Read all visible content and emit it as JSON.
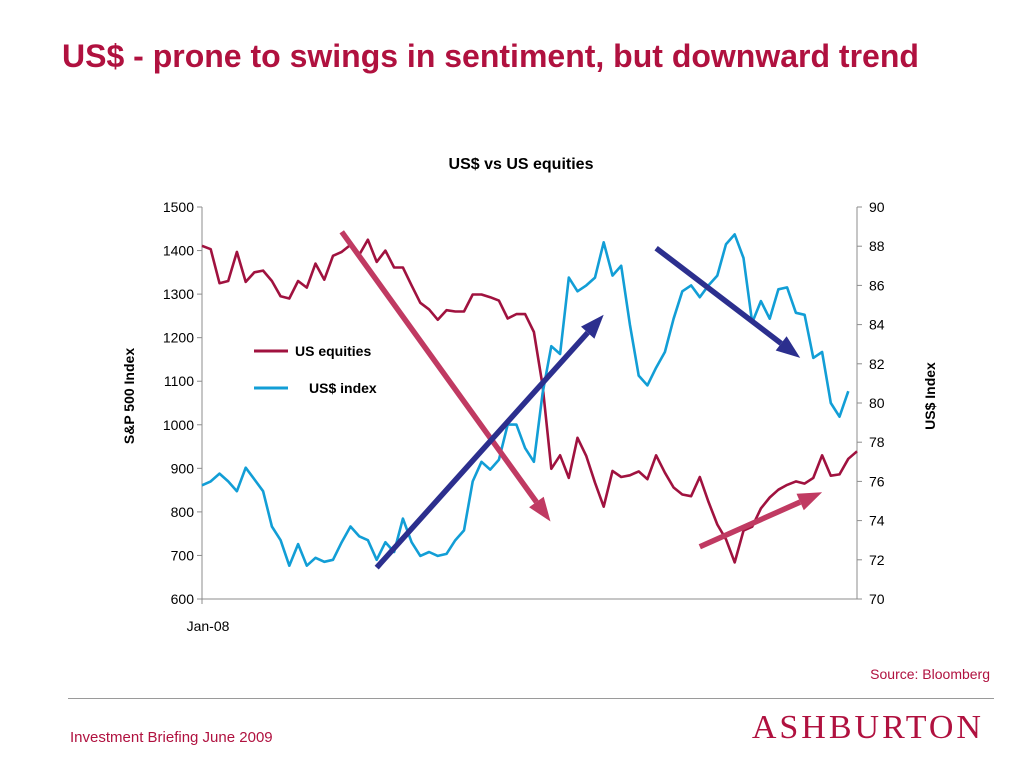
{
  "slide": {
    "title": "US$ - prone to swings in sentiment, but downward trend",
    "source": "Source: Bloomberg",
    "footer": "Investment Briefing June 2009",
    "logo": "ASHBURTON"
  },
  "colors": {
    "title": "#b0113f",
    "equities": "#a0123f",
    "usd_index": "#129ed6",
    "trend_down": "#c03a62",
    "trend_up": "#2c2f8e"
  },
  "chart_data": {
    "type": "line",
    "title": "US$ vs US equities",
    "x_tick_label": "Jan-08",
    "y_left": {
      "label": "S&P 500 Index",
      "range": [
        600,
        1500
      ],
      "ticks": [
        "600",
        "700",
        "800",
        "900",
        "1000",
        "1100",
        "1200",
        "1300",
        "1400",
        "1500"
      ]
    },
    "y_right": {
      "label": "US$ Index",
      "range": [
        70,
        90
      ],
      "ticks": [
        "70",
        "72",
        "74",
        "76",
        "78",
        "80",
        "82",
        "84",
        "86",
        "88",
        "90"
      ]
    },
    "legend": {
      "position": "upper-left-inside",
      "entries": [
        "US equities",
        "US$ index"
      ]
    },
    "grid": false,
    "series": [
      {
        "name": "US equities",
        "axis": "left",
        "values": [
          1411,
          1403,
          1325,
          1330,
          1397,
          1328,
          1350,
          1354,
          1330,
          1295,
          1290,
          1330,
          1315,
          1370,
          1333,
          1388,
          1397,
          1413,
          1390,
          1425,
          1374,
          1400,
          1361,
          1361,
          1320,
          1280,
          1265,
          1241,
          1263,
          1260,
          1260,
          1299,
          1299,
          1293,
          1285,
          1244,
          1254,
          1254,
          1213,
          1090,
          899,
          930,
          878,
          970,
          928,
          867,
          812,
          894,
          880,
          884,
          893,
          875,
          930,
          890,
          856,
          840,
          836,
          880,
          823,
          771,
          737,
          684,
          757,
          766,
          808,
          833,
          851,
          862,
          870,
          865,
          878,
          930,
          883,
          886,
          922,
          939
        ]
      },
      {
        "name": "US$ index",
        "axis": "right",
        "values": [
          75.8,
          76.0,
          76.4,
          76.0,
          75.5,
          76.7,
          76.1,
          75.5,
          73.7,
          73.0,
          71.7,
          72.8,
          71.7,
          72.1,
          71.9,
          72.0,
          72.9,
          73.7,
          73.2,
          73.0,
          72.0,
          72.9,
          72.4,
          74.1,
          72.9,
          72.2,
          72.4,
          72.2,
          72.3,
          73.0,
          73.5,
          76.0,
          77.0,
          76.6,
          77.1,
          78.9,
          78.9,
          77.7,
          77.0,
          80.5,
          82.9,
          82.5,
          86.4,
          85.7,
          86.0,
          86.4,
          88.2,
          86.5,
          87.0,
          84.0,
          81.4,
          80.9,
          81.8,
          82.6,
          84.3,
          85.7,
          86.0,
          85.4,
          86.0,
          86.5,
          88.1,
          88.6,
          87.4,
          84.1,
          85.2,
          84.3,
          85.8,
          85.9,
          84.6,
          84.5,
          82.3,
          82.6,
          80.0,
          79.3,
          80.6
        ]
      }
    ],
    "trend_arrows": [
      {
        "name": "equities-downtrend",
        "color": "trend_down",
        "from": {
          "i": 16.0,
          "axis": "left",
          "v": 1443
        },
        "to": {
          "i": 39.9,
          "axis": "left",
          "v": 778
        }
      },
      {
        "name": "equities-uptrend",
        "color": "trend_down",
        "from": {
          "i": 57.0,
          "axis": "left",
          "v": 720
        },
        "to": {
          "i": 71.0,
          "axis": "left",
          "v": 845
        }
      },
      {
        "name": "usd-uptrend",
        "color": "trend_up",
        "from": {
          "i": 20.0,
          "axis": "right",
          "v": 71.6
        },
        "to": {
          "i": 46.0,
          "axis": "right",
          "v": 84.5
        }
      },
      {
        "name": "usd-downtrend",
        "color": "trend_up",
        "from": {
          "i": 52.0,
          "axis": "right",
          "v": 87.9
        },
        "to": {
          "i": 68.5,
          "axis": "right",
          "v": 82.3
        }
      }
    ]
  }
}
